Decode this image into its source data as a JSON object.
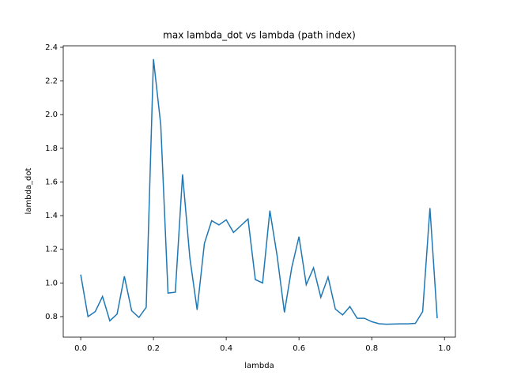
{
  "chart_data": {
    "type": "line",
    "title": "max lambda_dot vs lambda (path index)",
    "xlabel": "lambda",
    "ylabel": "lambda_dot",
    "x": [
      0.0,
      0.02,
      0.04,
      0.06,
      0.08,
      0.1,
      0.12,
      0.14,
      0.16,
      0.18,
      0.2,
      0.22,
      0.24,
      0.26,
      0.28,
      0.3,
      0.32,
      0.34,
      0.36,
      0.38,
      0.4,
      0.42,
      0.44,
      0.46,
      0.48,
      0.5,
      0.52,
      0.54,
      0.56,
      0.58,
      0.6,
      0.62,
      0.64,
      0.66,
      0.68,
      0.7,
      0.72,
      0.74,
      0.76,
      0.78,
      0.8,
      0.82,
      0.84,
      0.86,
      0.88,
      0.9,
      0.92,
      0.94,
      0.96,
      0.98
    ],
    "series": [
      {
        "color": "#1f77b4",
        "values": [
          1.05,
          0.8,
          0.83,
          0.92,
          0.775,
          0.815,
          1.04,
          0.835,
          0.795,
          0.855,
          2.33,
          1.94,
          0.94,
          0.945,
          1.645,
          1.15,
          0.84,
          1.235,
          1.37,
          1.345,
          1.375,
          1.3,
          1.34,
          1.38,
          1.02,
          1.0,
          1.43,
          1.16,
          0.825,
          1.09,
          1.275,
          0.99,
          1.09,
          0.915,
          1.035,
          0.845,
          0.81,
          0.86,
          0.79,
          0.79,
          0.77,
          0.758,
          0.755,
          0.756,
          0.757,
          0.757,
          0.76,
          0.83,
          1.445,
          0.79
        ]
      }
    ],
    "xlim": [
      -0.048,
      1.03
    ],
    "ylim": [
      0.678,
      2.409
    ],
    "xticks": [
      {
        "value": 0,
        "label": "0.0"
      },
      0.2,
      0.4,
      0.6,
      0.8,
      {
        "value": 1,
        "label": "1.0"
      }
    ],
    "yticks": [
      0.8,
      {
        "value": 1,
        "label": "1.0"
      },
      1.2,
      1.4,
      1.6,
      1.8,
      {
        "value": 2,
        "label": "2.0"
      },
      2.2,
      2.4
    ]
  }
}
